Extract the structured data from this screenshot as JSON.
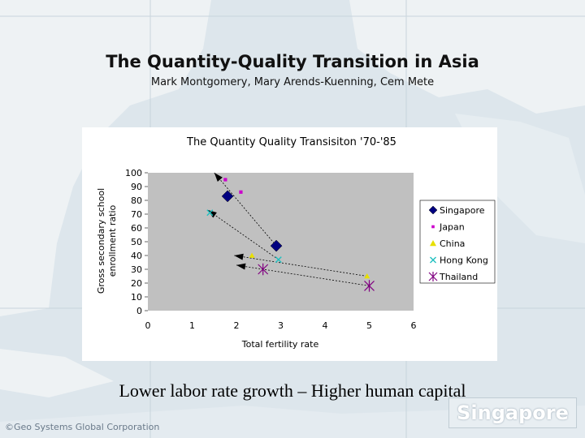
{
  "slide": {
    "title": "The Quantity-Quality Transition in Asia",
    "authors": "Mark Montgomery, Mary Arends-Kuenning, Cem Mete",
    "caption": "Lower labor rate growth – Higher human capital",
    "map_credit": "©Geo Systems Global Corporation",
    "map_logo": "Singapore"
  },
  "chart_data": {
    "type": "scatter",
    "title": "The Quantity Quality Transisiton '70-'85",
    "xlabel": "Total fertility rate",
    "ylabel_lines": [
      "Gross secondary school",
      "enrollment ratio"
    ],
    "xlim": [
      0,
      6
    ],
    "ylim": [
      0,
      100
    ],
    "xticks": [
      0,
      1,
      2,
      3,
      4,
      5,
      6
    ],
    "yticks": [
      0,
      10,
      20,
      30,
      40,
      50,
      60,
      70,
      80,
      90,
      100
    ],
    "grid": false,
    "legend_position": "right",
    "series": [
      {
        "name": "Singapore",
        "color": "#000080",
        "marker": "diamond",
        "points": [
          {
            "x": 1.8,
            "y": 83
          },
          {
            "x": 2.9,
            "y": 47
          }
        ]
      },
      {
        "name": "Japan",
        "color": "#cc00cc",
        "marker": "square",
        "points": [
          {
            "x": 1.75,
            "y": 95
          },
          {
            "x": 2.1,
            "y": 86
          }
        ]
      },
      {
        "name": "China",
        "color": "#e8e000",
        "marker": "triangle",
        "points": [
          {
            "x": 2.35,
            "y": 40
          },
          {
            "x": 4.95,
            "y": 25
          }
        ]
      },
      {
        "name": "Hong Kong",
        "color": "#20c0c0",
        "marker": "x",
        "points": [
          {
            "x": 1.4,
            "y": 71
          },
          {
            "x": 2.95,
            "y": 37
          }
        ]
      },
      {
        "name": "Thailand",
        "color": "#800080",
        "marker": "star",
        "points": [
          {
            "x": 2.6,
            "y": 30
          },
          {
            "x": 5.0,
            "y": 18
          }
        ]
      }
    ],
    "arrows": [
      {
        "from": {
          "x": 2.9,
          "y": 47
        },
        "to": {
          "x": 1.5,
          "y": 100
        }
      },
      {
        "from": {
          "x": 2.95,
          "y": 37
        },
        "to": {
          "x": 1.35,
          "y": 73
        }
      },
      {
        "from": {
          "x": 4.95,
          "y": 25
        },
        "to": {
          "x": 1.95,
          "y": 40
        }
      },
      {
        "from": {
          "x": 5.0,
          "y": 18
        },
        "to": {
          "x": 2.0,
          "y": 33
        }
      }
    ]
  }
}
